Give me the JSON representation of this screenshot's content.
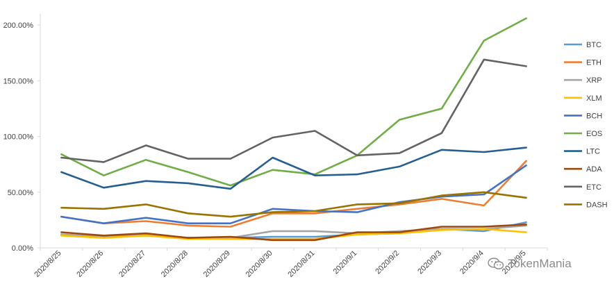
{
  "chart_data": {
    "type": "line",
    "categories": [
      "2020/8/25",
      "2020/8/26",
      "2020/8/27",
      "2020/8/28",
      "2020/8/29",
      "2020/8/30",
      "2020/8/31",
      "2020/9/1",
      "2020/9/2",
      "2020/9/3",
      "2020/9/4",
      "2020/9/5"
    ],
    "y_tick_labels": [
      "0.00%",
      "50.00%",
      "100.00%",
      "150.00%",
      "200.00%"
    ],
    "ylim": [
      0,
      2.1
    ],
    "y_ticks": [
      0,
      0.5,
      1.0,
      1.5,
      2.0
    ],
    "grid": false,
    "legend_position": "right",
    "series": [
      {
        "name": "BTC",
        "color": "#5B9BD5",
        "values": [
          0.12,
          0.1,
          0.11,
          0.09,
          0.09,
          0.1,
          0.1,
          0.12,
          0.13,
          0.17,
          0.15,
          0.23
        ]
      },
      {
        "name": "ETH",
        "color": "#ED7D31",
        "values": [
          0.28,
          0.22,
          0.24,
          0.2,
          0.19,
          0.31,
          0.31,
          0.35,
          0.39,
          0.44,
          0.38,
          0.78
        ]
      },
      {
        "name": "XRP",
        "color": "#A5A5A5",
        "values": [
          0.12,
          0.1,
          0.12,
          0.09,
          0.09,
          0.15,
          0.15,
          0.13,
          0.15,
          0.17,
          0.17,
          0.2
        ]
      },
      {
        "name": "XLM",
        "color": "#FFC000",
        "values": [
          0.11,
          0.09,
          0.11,
          0.08,
          0.08,
          0.08,
          0.08,
          0.12,
          0.13,
          0.16,
          0.17,
          0.14
        ]
      },
      {
        "name": "BCH",
        "color": "#4472C4",
        "values": [
          0.28,
          0.22,
          0.27,
          0.22,
          0.22,
          0.35,
          0.33,
          0.32,
          0.41,
          0.46,
          0.48,
          0.74
        ]
      },
      {
        "name": "EOS",
        "color": "#70AD47",
        "values": [
          0.84,
          0.65,
          0.79,
          0.68,
          0.56,
          0.7,
          0.66,
          0.83,
          1.15,
          1.25,
          1.86,
          2.06
        ]
      },
      {
        "name": "LTC",
        "color": "#255E91",
        "values": [
          0.68,
          0.54,
          0.6,
          0.58,
          0.53,
          0.81,
          0.65,
          0.66,
          0.73,
          0.88,
          0.86,
          0.9
        ]
      },
      {
        "name": "ADA",
        "color": "#9E480E",
        "values": [
          0.14,
          0.11,
          0.13,
          0.09,
          0.1,
          0.07,
          0.07,
          0.14,
          0.14,
          0.19,
          0.19,
          0.21
        ]
      },
      {
        "name": "ETC",
        "color": "#636363",
        "values": [
          0.81,
          0.77,
          0.92,
          0.8,
          0.8,
          0.99,
          1.05,
          0.83,
          0.85,
          1.03,
          1.69,
          1.63
        ]
      },
      {
        "name": "DASH",
        "color": "#997300",
        "values": [
          0.36,
          0.35,
          0.39,
          0.31,
          0.28,
          0.32,
          0.33,
          0.39,
          0.4,
          0.47,
          0.5,
          0.45
        ]
      }
    ]
  },
  "watermark": {
    "text": "TokenMania",
    "icon": "wechat-icon"
  }
}
